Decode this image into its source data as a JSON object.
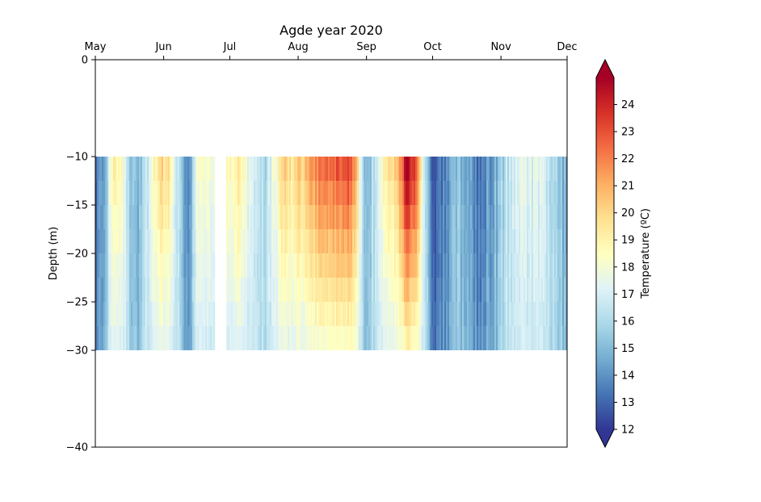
{
  "chart_data": {
    "type": "heatmap",
    "title": "Agde year 2020",
    "xlabel": "",
    "ylabel": "Depth (m)",
    "colorbar_label": "Temperature (ºC)",
    "x_axis_position": "top",
    "x_ticks": [
      "May",
      "Jun",
      "Jul",
      "Aug",
      "Sep",
      "Oct",
      "Nov",
      "Dec"
    ],
    "x_range": [
      "2020-05-01",
      "2020-12-01"
    ],
    "ylim": [
      -40,
      0
    ],
    "y_ticks": [
      0,
      -10,
      -15,
      -20,
      -25,
      -30,
      -40
    ],
    "depth_range": [
      -30,
      -10
    ],
    "colorbar_range": [
      12,
      25
    ],
    "colorbar_ticks": [
      12,
      13,
      14,
      15,
      16,
      17,
      18,
      19,
      20,
      21,
      22,
      23,
      24
    ],
    "colormap": "RdYlBu_r",
    "colormap_stops": [
      "#313695",
      "#4575b4",
      "#74add1",
      "#abd9e9",
      "#e0f3f8",
      "#ffffbf",
      "#fee090",
      "#fdae61",
      "#f46d43",
      "#d73027",
      "#a50026"
    ],
    "data_gap": [
      "2020-06-24",
      "2020-06-29"
    ],
    "temperature_anomalies": [
      {
        "date": "2020-05-01",
        "delta": -3
      },
      {
        "date": "2020-05-04",
        "delta": -2.5
      },
      {
        "date": "2020-05-10",
        "delta": 2.5
      },
      {
        "date": "2020-05-20",
        "delta": -1.5
      },
      {
        "date": "2020-06-01",
        "delta": 3.5
      },
      {
        "date": "2020-06-12",
        "delta": -2.5
      },
      {
        "date": "2020-06-17",
        "delta": 1.5
      },
      {
        "date": "2020-07-05",
        "delta": 2.5
      },
      {
        "date": "2020-07-15",
        "delta": -0.5
      },
      {
        "date": "2020-07-27",
        "delta": 3.5
      },
      {
        "date": "2020-08-15",
        "delta": 6.0
      },
      {
        "date": "2020-08-24",
        "delta": 7.0
      },
      {
        "date": "2020-09-01",
        "delta": -1.0
      },
      {
        "date": "2020-09-14",
        "delta": 3.5
      },
      {
        "date": "2020-09-20",
        "delta": 8.5
      },
      {
        "date": "2020-10-02",
        "delta": -3.5
      },
      {
        "date": "2020-10-12",
        "delta": -1.5
      },
      {
        "date": "2020-10-22",
        "delta": -3.0
      },
      {
        "date": "2020-11-10",
        "delta": 1.0
      },
      {
        "date": "2020-11-20",
        "delta": 0.5
      },
      {
        "date": "2020-12-01",
        "delta": -1.5
      }
    ]
  }
}
